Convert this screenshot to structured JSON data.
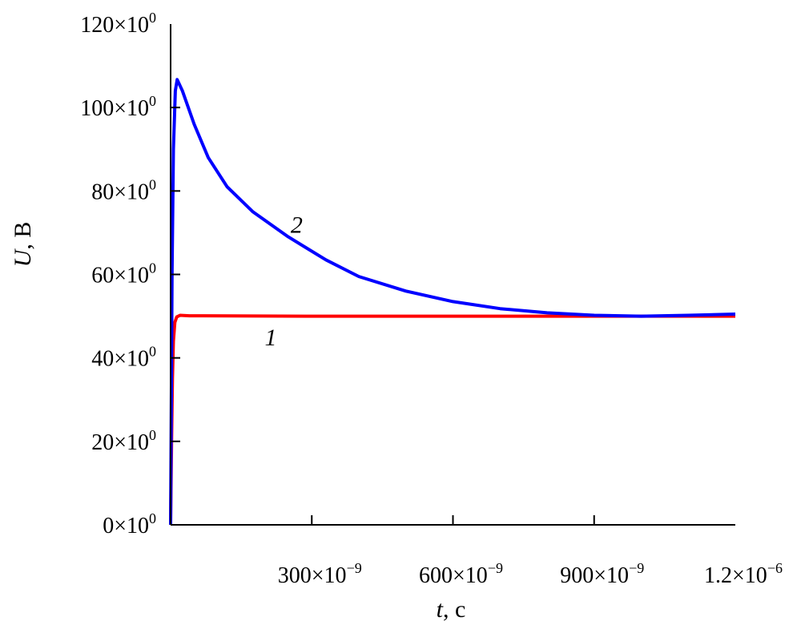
{
  "chart_data": {
    "type": "line",
    "xlabel_var": "t",
    "xlabel_unit": ", с",
    "ylabel_var": "U",
    "ylabel_unit": ", В",
    "xlim": [
      0,
      1.2e-06
    ],
    "ylim": [
      0,
      120
    ],
    "grid": false,
    "x_ticks": [
      {
        "value": 3e-07,
        "mant": "300×10",
        "exp": "−9"
      },
      {
        "value": 6e-07,
        "mant": "600×10",
        "exp": "−9"
      },
      {
        "value": 9e-07,
        "mant": "900×10",
        "exp": "−9"
      },
      {
        "value": 1.2e-06,
        "mant": "1.2×10",
        "exp": "−6"
      }
    ],
    "y_ticks": [
      {
        "value": 0,
        "mant": "0×10",
        "exp": "0"
      },
      {
        "value": 20,
        "mant": "20×10",
        "exp": "0"
      },
      {
        "value": 40,
        "mant": "40×10",
        "exp": "0"
      },
      {
        "value": 60,
        "mant": "60×10",
        "exp": "0"
      },
      {
        "value": 80,
        "mant": "80×10",
        "exp": "0"
      },
      {
        "value": 100,
        "mant": "100×10",
        "exp": "0"
      },
      {
        "value": 120,
        "mant": "120×10",
        "exp": "0"
      }
    ],
    "series": [
      {
        "name": "1",
        "color": "#ff0000",
        "label_at": [
          2e-07,
          43
        ],
        "x": [
          0,
          2e-09,
          4e-09,
          6e-09,
          9e-09,
          1.3e-08,
          2e-08,
          4e-08,
          3e-07,
          6e-07,
          9e-07,
          1.2e-06
        ],
        "y": [
          0,
          20,
          35,
          44,
          48.5,
          49.8,
          50.2,
          50.1,
          50,
          50,
          50,
          50
        ]
      },
      {
        "name": "2",
        "color": "#0000ff",
        "label_at": [
          2.55e-07,
          70
        ],
        "x": [
          0,
          3e-09,
          6e-09,
          1e-08,
          1.4e-08,
          2.5e-08,
          5e-08,
          8e-08,
          1.2e-07,
          1.75e-07,
          2.5e-07,
          3.3e-07,
          4e-07,
          5e-07,
          6e-07,
          7e-07,
          8e-07,
          9e-07,
          1e-06,
          1.1e-06,
          1.2e-06
        ],
        "y": [
          0,
          60,
          90,
          104,
          106.7,
          104,
          96,
          88,
          81,
          75,
          69,
          63.5,
          59.5,
          56,
          53.5,
          51.8,
          50.8,
          50.2,
          50,
          50.2,
          50.5
        ]
      }
    ]
  }
}
